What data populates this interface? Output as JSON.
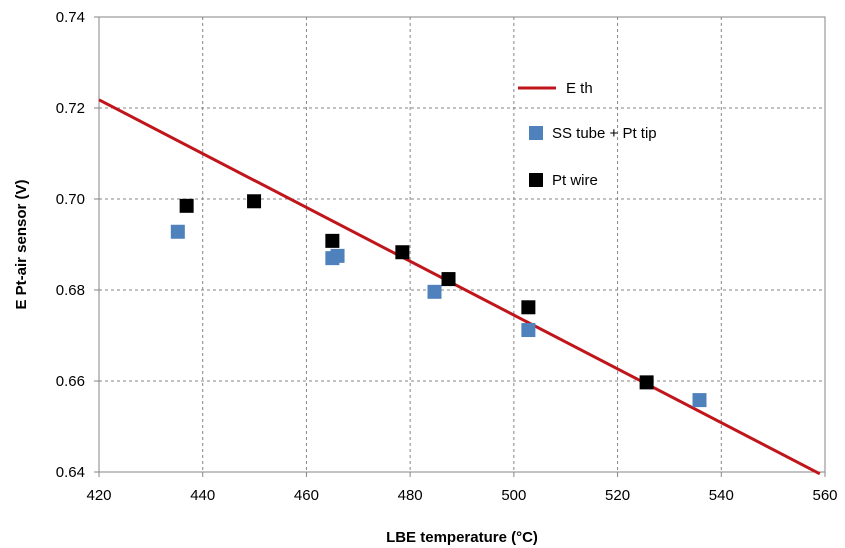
{
  "chart_data": {
    "type": "scatter",
    "title": "",
    "xlabel": "LBE temperature (°C)",
    "ylabel": "E Pt-air sensor (V)",
    "xlim": [
      420,
      560
    ],
    "ylim": [
      0.64,
      0.74
    ],
    "x_ticks": [
      "420",
      "440",
      "460",
      "480",
      "500",
      "520",
      "540",
      "560"
    ],
    "y_ticks": [
      "0.64",
      "0.66",
      "0.68",
      "0.70",
      "0.72",
      "0.74"
    ],
    "grid": true,
    "legend_position": "right",
    "series": [
      {
        "name": "E th",
        "kind": "line",
        "color": "#c0161b",
        "points": [
          [
            420,
            0.7218
          ],
          [
            559,
            0.6396
          ]
        ]
      },
      {
        "name": "SS tube + Pt tip",
        "kind": "marker",
        "color": "#4f81bd",
        "points": [
          [
            435.2,
            0.6928
          ],
          [
            465.0,
            0.687
          ],
          [
            466.0,
            0.6875
          ],
          [
            484.7,
            0.6796
          ],
          [
            502.8,
            0.6712
          ],
          [
            535.8,
            0.6558
          ]
        ]
      },
      {
        "name": "Pt wire",
        "kind": "marker",
        "color": "#000000",
        "points": [
          [
            436.9,
            0.6985
          ],
          [
            449.9,
            0.6995
          ],
          [
            465.0,
            0.6908
          ],
          [
            478.5,
            0.6883
          ],
          [
            487.4,
            0.6824
          ],
          [
            502.8,
            0.6762
          ],
          [
            525.6,
            0.6597
          ]
        ]
      }
    ]
  }
}
